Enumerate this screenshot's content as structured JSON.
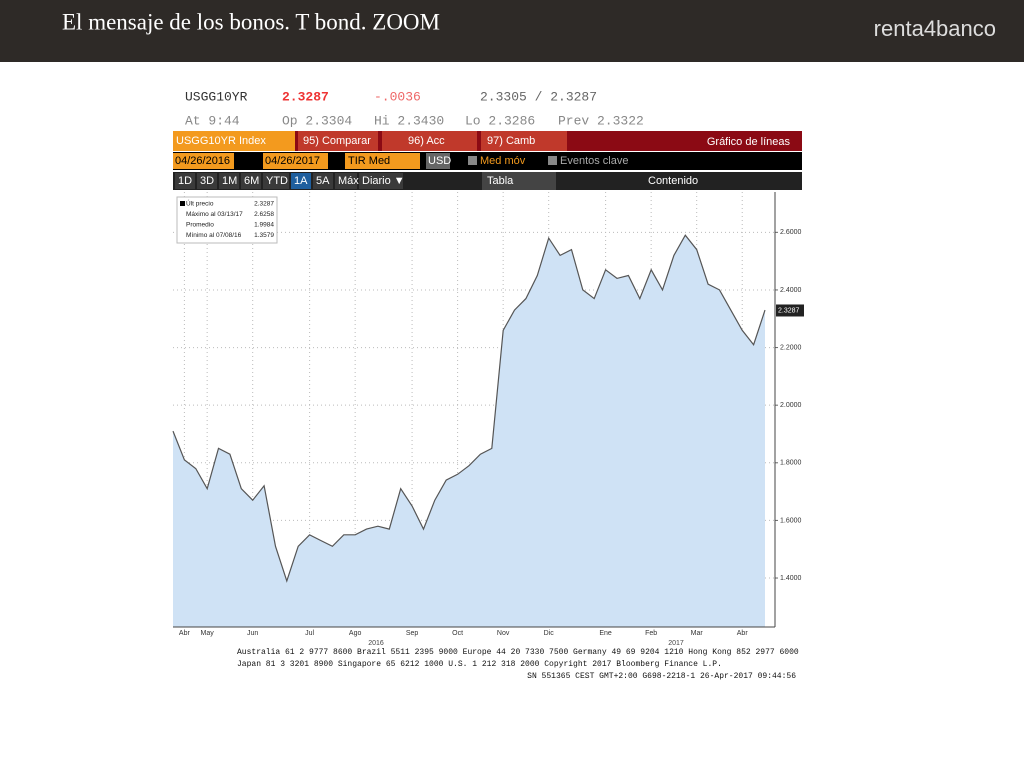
{
  "slide": {
    "title": "El mensaje de los bonos. T bond. ZOOM",
    "logo": "renta4banco"
  },
  "terminal": {
    "ticker": "USGG10YR",
    "last": "2.3287",
    "change": "-.0036",
    "bid_ask": "2.3305 / 2.3287",
    "time": "At 9:44",
    "open": "Op 2.3304",
    "high": "Hi 2.3430",
    "low": "Lo 2.3286",
    "prev": "Prev 2.3322",
    "security": "USGG10YR Index",
    "btn_compare": "95) Comparar",
    "btn_actions": "96) Acc",
    "btn_change": "97) Camb",
    "chart_kind": "Gráfico de líneas",
    "date_from": "04/26/2016",
    "date_to": "04/26/2017",
    "field": "TIR Med",
    "currency": "USD",
    "moving_avg": "Med móv",
    "key_events": "Eventos clave",
    "periods": [
      "1D",
      "3D",
      "1M",
      "6M",
      "YTD",
      "1A",
      "5A",
      "Máx",
      "Diario ▼"
    ],
    "table": "Tabla",
    "content": "Contenido",
    "footer": [
      "Australia 61 2 9777 8600 Brazil 5511 2395 9000 Europe 44 20 7330 7500 Germany 49 69 9204 1210 Hong Kong 852 2977 6000",
      "Japan 81 3 3201 8900    Singapore 65 6212 1000    U.S. 1 212 318 2000    Copyright 2017 Bloomberg Finance L.P.",
      "SN 551365 CEST GMT+2:00 G698-2218-1 26-Apr-2017 09:44:56"
    ]
  },
  "chart_data": {
    "type": "area",
    "color": "#cfe2f5",
    "line_color": "#555555",
    "grid": true,
    "categories": [
      null,
      "Abr",
      null,
      "May",
      null,
      null,
      null,
      "Jun",
      null,
      null,
      null,
      null,
      "Jul",
      null,
      null,
      null,
      "Ago",
      null,
      null,
      null,
      null,
      "Sep",
      null,
      null,
      null,
      "Oct",
      null,
      null,
      null,
      "Nov",
      null,
      null,
      null,
      "Dic",
      null,
      null,
      null,
      null,
      "Ene",
      null,
      null,
      null,
      "Feb",
      null,
      null,
      null,
      "Mar",
      null,
      null,
      null,
      "Abr",
      null,
      null
    ],
    "values": [
      1.91,
      1.81,
      1.78,
      1.71,
      1.85,
      1.83,
      1.71,
      1.67,
      1.72,
      1.51,
      1.39,
      1.51,
      1.55,
      1.53,
      1.51,
      1.55,
      1.55,
      1.57,
      1.58,
      1.57,
      1.71,
      1.65,
      1.57,
      1.67,
      1.74,
      1.76,
      1.79,
      1.83,
      1.85,
      2.26,
      2.33,
      2.37,
      2.45,
      2.58,
      2.52,
      2.54,
      2.4,
      2.37,
      2.47,
      2.44,
      2.45,
      2.37,
      2.47,
      2.4,
      2.52,
      2.59,
      2.54,
      2.42,
      2.4,
      2.33,
      2.26,
      2.21,
      2.33
    ],
    "year_labels": [
      "2016",
      "2017"
    ],
    "ylim": [
      1.23,
      2.74
    ],
    "yticks": [
      {
        "value": 1.4,
        "label": "1.4000"
      },
      {
        "value": 1.6,
        "label": "1.6000"
      },
      {
        "value": 1.8,
        "label": "1.8000"
      },
      {
        "value": 2.0,
        "label": "2.0000"
      },
      {
        "value": 2.2,
        "label": "2.2000"
      },
      {
        "value": 2.4,
        "label": "2.4000"
      },
      {
        "value": 2.6,
        "label": "2.6000"
      }
    ],
    "last_value": 2.3287,
    "legend": [
      {
        "label": "Últ precio",
        "value": 2.3287
      },
      {
        "label": "Máximo al 03/13/17",
        "value": 2.6258
      },
      {
        "label": "Promedio",
        "value": 1.9984
      },
      {
        "label": "Mínimo al 07/08/16",
        "value": 1.3579
      }
    ]
  }
}
